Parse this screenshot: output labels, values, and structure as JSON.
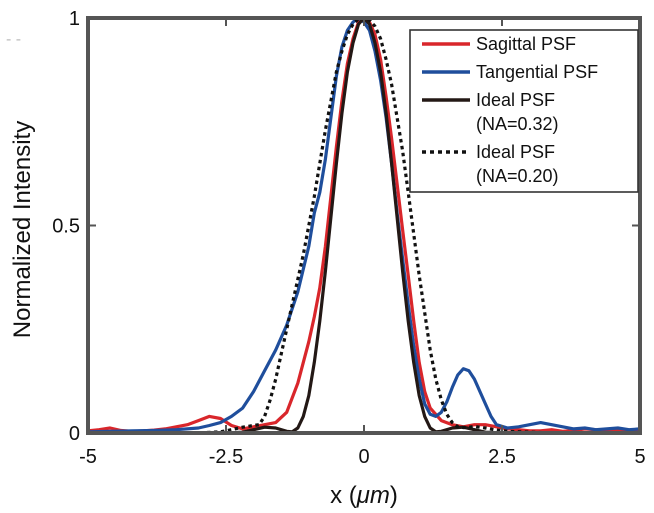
{
  "chart_data": {
    "type": "line",
    "xlabel": "x (",
    "xlabel_unit": "μm",
    "xlabel_close": ")",
    "ylabel": "Normalized Intensity",
    "xlim": [
      -5,
      5
    ],
    "ylim": [
      0,
      1
    ],
    "xticks": [
      -5,
      -2.5,
      0,
      2.5,
      5
    ],
    "xtick_labels": [
      "-5",
      "-2.5",
      "0",
      "2.5",
      "5"
    ],
    "yticks": [
      0,
      0.5,
      1
    ],
    "ytick_labels": [
      "0",
      "0.5",
      "1"
    ],
    "legend_position": "top-right",
    "series": [
      {
        "name": "Sagittal PSF",
        "legend_lines": [
          "Sagittal PSF"
        ],
        "color": "#d9262b",
        "dash": "solid",
        "x": [
          -5,
          -4.8,
          -4.6,
          -4.4,
          -4.2,
          -4,
          -3.8,
          -3.6,
          -3.4,
          -3.2,
          -3,
          -2.8,
          -2.6,
          -2.4,
          -2.2,
          -2,
          -1.8,
          -1.6,
          -1.4,
          -1.2,
          -1,
          -0.9,
          -0.8,
          -0.7,
          -0.6,
          -0.5,
          -0.4,
          -0.3,
          -0.2,
          -0.1,
          0,
          0.1,
          0.2,
          0.3,
          0.4,
          0.5,
          0.6,
          0.7,
          0.8,
          0.9,
          1,
          1.1,
          1.2,
          1.4,
          1.6,
          1.8,
          2,
          2.2,
          2.4,
          2.6,
          2.8,
          3,
          3.2,
          3.4,
          3.6,
          3.8,
          4,
          4.2,
          4.4,
          4.6,
          4.8,
          5
        ],
        "y": [
          0.005,
          0.008,
          0.012,
          0.006,
          0.004,
          0.005,
          0.007,
          0.01,
          0.015,
          0.02,
          0.03,
          0.04,
          0.035,
          0.018,
          0.01,
          0.015,
          0.02,
          0.025,
          0.05,
          0.12,
          0.22,
          0.28,
          0.35,
          0.45,
          0.57,
          0.69,
          0.8,
          0.89,
          0.95,
          0.99,
          1.0,
          0.99,
          0.96,
          0.9,
          0.81,
          0.71,
          0.6,
          0.49,
          0.38,
          0.27,
          0.17,
          0.1,
          0.06,
          0.03,
          0.02,
          0.015,
          0.02,
          0.02,
          0.015,
          0.01,
          0.008,
          0.005,
          0.005,
          0.008,
          0.004,
          0.006,
          0.01,
          0.008,
          0.005,
          0.008,
          0.005,
          0.006
        ]
      },
      {
        "name": "Tangential PSF",
        "legend_lines": [
          "Tangential PSF"
        ],
        "color": "#1f4e9c",
        "dash": "solid",
        "x": [
          -5,
          -4.6,
          -4.2,
          -3.8,
          -3.4,
          -3,
          -2.8,
          -2.6,
          -2.4,
          -2.2,
          -2,
          -1.8,
          -1.6,
          -1.4,
          -1.2,
          -1,
          -0.9,
          -0.8,
          -0.7,
          -0.6,
          -0.5,
          -0.4,
          -0.3,
          -0.2,
          -0.1,
          0,
          0.1,
          0.2,
          0.3,
          0.4,
          0.5,
          0.6,
          0.7,
          0.8,
          0.9,
          1,
          1.1,
          1.2,
          1.3,
          1.4,
          1.5,
          1.6,
          1.7,
          1.8,
          1.9,
          2,
          2.1,
          2.2,
          2.3,
          2.4,
          2.6,
          2.8,
          3,
          3.2,
          3.4,
          3.6,
          3.8,
          4,
          4.2,
          4.4,
          4.6,
          4.8,
          5
        ],
        "y": [
          0.003,
          0.004,
          0.005,
          0.006,
          0.008,
          0.012,
          0.018,
          0.025,
          0.04,
          0.06,
          0.1,
          0.15,
          0.2,
          0.26,
          0.34,
          0.45,
          0.53,
          0.58,
          0.66,
          0.76,
          0.86,
          0.93,
          0.97,
          0.99,
          1.0,
          0.99,
          0.97,
          0.92,
          0.85,
          0.76,
          0.65,
          0.53,
          0.42,
          0.31,
          0.21,
          0.13,
          0.07,
          0.045,
          0.04,
          0.05,
          0.075,
          0.11,
          0.14,
          0.155,
          0.15,
          0.13,
          0.1,
          0.07,
          0.04,
          0.02,
          0.012,
          0.015,
          0.02,
          0.025,
          0.02,
          0.015,
          0.01,
          0.012,
          0.008,
          0.01,
          0.012,
          0.008,
          0.01
        ]
      },
      {
        "name": "Ideal PSF (NA=0.32)",
        "legend_lines": [
          "Ideal PSF",
          "(NA=0.32)"
        ],
        "color": "#231815",
        "dash": "solid",
        "x": [
          -5,
          -4.5,
          -4,
          -3.5,
          -3,
          -2.5,
          -2.2,
          -2,
          -1.8,
          -1.6,
          -1.5,
          -1.4,
          -1.3,
          -1.2,
          -1.1,
          -1,
          -0.9,
          -0.8,
          -0.7,
          -0.6,
          -0.5,
          -0.4,
          -0.3,
          -0.2,
          -0.1,
          0,
          0.1,
          0.2,
          0.3,
          0.4,
          0.5,
          0.6,
          0.7,
          0.8,
          0.9,
          1,
          1.1,
          1.2,
          1.3,
          1.4,
          1.5,
          1.6,
          1.8,
          2,
          2.2,
          2.5,
          3,
          3.5,
          4,
          4.5,
          5
        ],
        "y": [
          0,
          0,
          0,
          0,
          0,
          0,
          0.002,
          0.008,
          0.014,
          0.012,
          0.008,
          0.004,
          0.003,
          0.012,
          0.04,
          0.09,
          0.17,
          0.27,
          0.39,
          0.52,
          0.65,
          0.77,
          0.87,
          0.94,
          0.985,
          1.0,
          0.985,
          0.94,
          0.87,
          0.77,
          0.65,
          0.52,
          0.39,
          0.27,
          0.17,
          0.09,
          0.04,
          0.012,
          0.003,
          0.004,
          0.008,
          0.012,
          0.014,
          0.008,
          0.002,
          0,
          0,
          0,
          0,
          0,
          0
        ]
      },
      {
        "name": "Ideal PSF (NA=0.20)",
        "legend_lines": [
          "Ideal PSF",
          "(NA=0.20)"
        ],
        "color": "#111111",
        "dash": "dotted",
        "x": [
          -5,
          -4.5,
          -4,
          -3.5,
          -3,
          -2.6,
          -2.4,
          -2.2,
          -2,
          -1.9,
          -1.8,
          -1.7,
          -1.6,
          -1.5,
          -1.4,
          -1.3,
          -1.2,
          -1.1,
          -1,
          -0.9,
          -0.8,
          -0.7,
          -0.6,
          -0.5,
          -0.4,
          -0.3,
          -0.2,
          -0.1,
          0,
          0.1,
          0.2,
          0.3,
          0.4,
          0.5,
          0.6,
          0.7,
          0.8,
          0.9,
          1,
          1.1,
          1.2,
          1.3,
          1.4,
          1.5,
          1.6,
          1.7,
          1.8,
          1.9,
          2,
          2.2,
          2.4,
          2.6,
          3,
          3.5,
          4,
          4.5,
          5
        ],
        "y": [
          0,
          0,
          0,
          0,
          0,
          0.003,
          0.008,
          0.014,
          0.018,
          0.02,
          0.04,
          0.08,
          0.13,
          0.19,
          0.25,
          0.31,
          0.37,
          0.43,
          0.5,
          0.57,
          0.65,
          0.73,
          0.8,
          0.87,
          0.92,
          0.96,
          0.985,
          0.998,
          1.0,
          0.995,
          0.98,
          0.95,
          0.9,
          0.84,
          0.76,
          0.68,
          0.58,
          0.48,
          0.38,
          0.29,
          0.2,
          0.13,
          0.08,
          0.045,
          0.025,
          0.015,
          0.013,
          0.014,
          0.016,
          0.012,
          0.007,
          0.004,
          0.002,
          0,
          0,
          0,
          0
        ]
      }
    ]
  },
  "corner_mark": "-  -"
}
